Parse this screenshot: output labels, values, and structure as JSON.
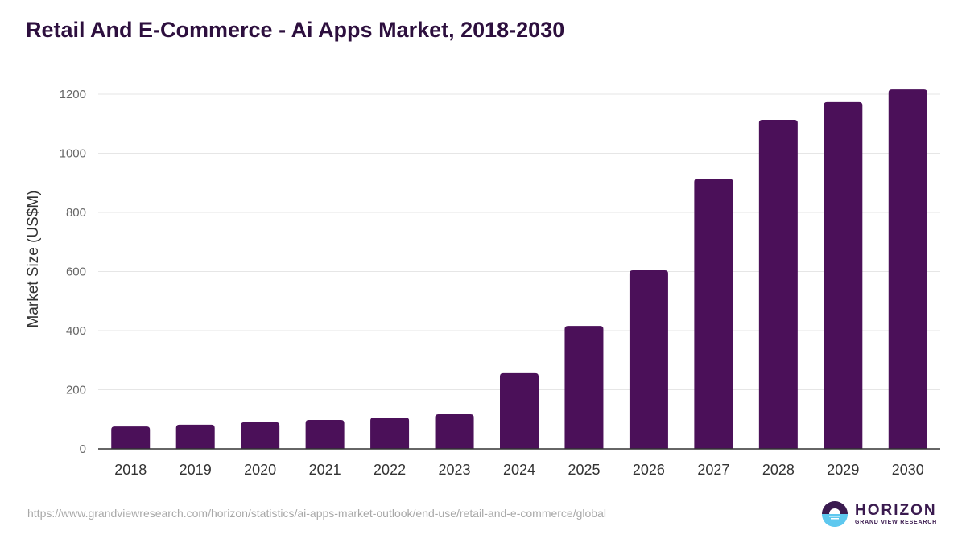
{
  "chart_data": {
    "type": "bar",
    "title": "Retail And E-Commerce - Ai Apps Market, 2018-2030",
    "xlabel": "",
    "ylabel": "Market Size (US$M)",
    "categories": [
      "2018",
      "2019",
      "2020",
      "2021",
      "2022",
      "2023",
      "2024",
      "2025",
      "2026",
      "2027",
      "2028",
      "2029",
      "2030"
    ],
    "values": [
      76,
      82,
      90,
      98,
      106,
      117,
      256,
      416,
      604,
      914,
      1113,
      1173,
      1216
    ],
    "ylim": [
      0,
      1200
    ],
    "yticks": [
      0,
      200,
      400,
      600,
      800,
      1000,
      1200
    ],
    "grid": true,
    "bar_color": "#4b1059"
  },
  "footer": {
    "url": "https://www.grandviewresearch.com/horizon/statistics/ai-apps-market-outlook/end-use/retail-and-e-commerce/global",
    "logo_main": "HORIZON",
    "logo_sub": "GRAND VIEW RESEARCH"
  }
}
